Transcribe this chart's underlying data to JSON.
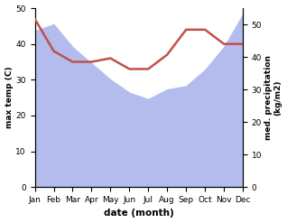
{
  "months": [
    "Jan",
    "Feb",
    "Mar",
    "Apr",
    "May",
    "Jun",
    "Jul",
    "Aug",
    "Sep",
    "Oct",
    "Nov",
    "Dec"
  ],
  "precipitation": [
    48,
    50,
    43,
    38,
    33,
    29,
    27,
    30,
    31,
    36,
    43,
    53
  ],
  "temperature": [
    47,
    38,
    35,
    35,
    36,
    33,
    33,
    37,
    44,
    44,
    40,
    40
  ],
  "temp_ylim": [
    0,
    50
  ],
  "precip_ylim": [
    0,
    55
  ],
  "precip_color": "#b3bcec",
  "temp_color": "#c0504d",
  "xlabel": "date (month)",
  "ylabel_left": "max temp (C)",
  "ylabel_right": "med. precipitation\n(kg/m2)",
  "yticks_left": [
    0,
    10,
    20,
    30,
    40,
    50
  ],
  "yticks_right": [
    0,
    10,
    20,
    30,
    40,
    50
  ]
}
